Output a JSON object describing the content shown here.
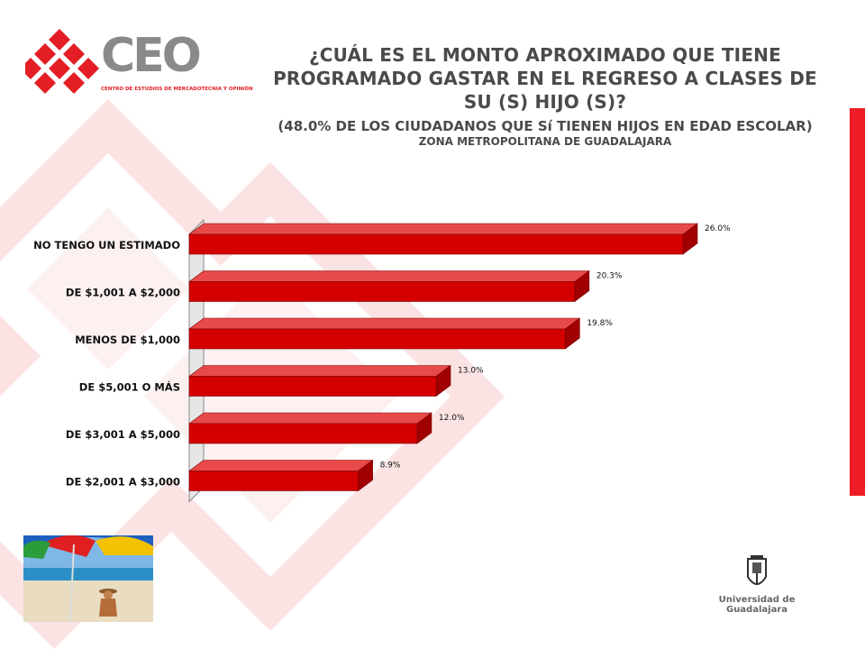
{
  "header": {
    "logo_text": "CEO",
    "logo_subtitle": "CENTRO DE ESTUDIOS DE MERCADOTECNIA Y OPINIÓN",
    "title_line1": "¿CUÁL ES EL MONTO APROXIMADO QUE TIENE",
    "title_line2": "PROGRAMADO GASTAR EN EL REGRESO A CLASES DE",
    "title_line3": "SU (S) HIJO (S)?",
    "subtitle": "(48.0% DE LOS CIUDADANOS QUE Sí TIENEN HIJOS EN EDAD ESCOLAR)",
    "region": "ZONA METROPOLITANA DE GUADALAJARA"
  },
  "footer": {
    "university": "Universidad de Guadalajara"
  },
  "colors": {
    "bar": "#d40000",
    "bar_top": "#e84a4a",
    "bar_side": "#a00000",
    "accent": "#ee1c24",
    "title": "#4a4a4a"
  },
  "chart_data": {
    "type": "bar",
    "orientation": "horizontal",
    "categories": [
      "NO TENGO UN ESTIMADO",
      "DE $1,001 A $2,000",
      "MENOS DE $1,000",
      "DE $5,001 O MÁS",
      "DE $3,001 A $5,000",
      "DE $2,001 A $3,000"
    ],
    "values": [
      26.0,
      20.3,
      19.8,
      13.0,
      12.0,
      8.9
    ],
    "value_labels": [
      "26.0%",
      "20.3%",
      "19.8%",
      "13.0%",
      "12.0%",
      "8.9%"
    ],
    "xlim": [
      0,
      26.0
    ],
    "grid": false,
    "legend": "none"
  }
}
